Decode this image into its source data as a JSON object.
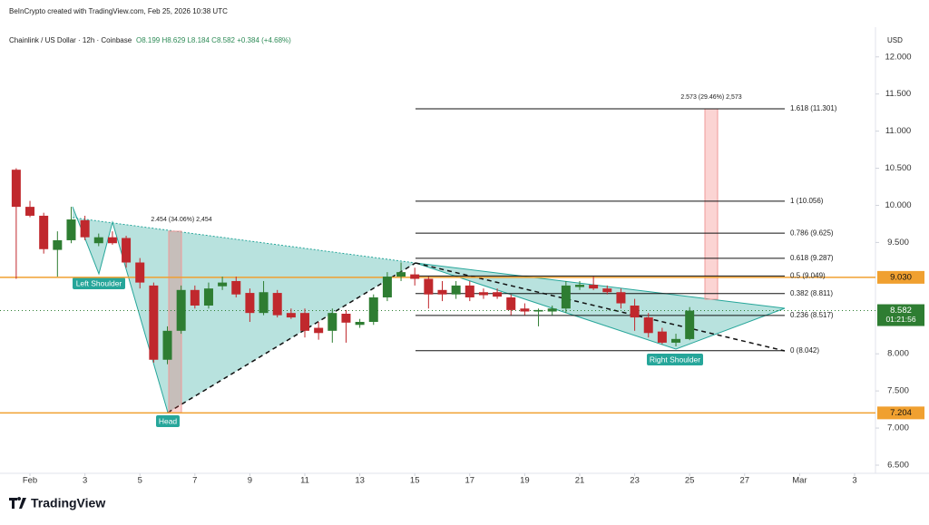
{
  "chart_data": {
    "type": "candlestick",
    "credit": "BeInCrypto created with TradingView.com, Feb 25, 2026 10:38 UTC",
    "title": "Chainlink / US Dollar · 12h · Coinbase",
    "ohlc": "O8.199 H8.629 L8.184 C8.582 +0.384 (+4.68%)",
    "currency": "USD",
    "brand": "TradingView",
    "up_color": "#2e7d32",
    "down_color": "#c0282d",
    "level_color": "#f0a030",
    "grid": false,
    "xlim": [
      -0.09,
      31.76
    ],
    "xticks": [
      {
        "value": 1,
        "label": "Feb"
      },
      3,
      5,
      7,
      9,
      11,
      13,
      15,
      17,
      19,
      21,
      23,
      25,
      27,
      {
        "value": 29,
        "label": "Mar"
      },
      {
        "value": 31,
        "label": "3"
      }
    ],
    "ylim": [
      6.39,
      12.4
    ],
    "yticks": [
      {
        "value": 6.5,
        "label": "6.500"
      },
      {
        "value": 7,
        "label": "7.000"
      },
      {
        "value": 7.5,
        "label": "7.500"
      },
      {
        "value": 8,
        "label": "8.000"
      },
      {
        "value": 9.5,
        "label": "9.500"
      },
      {
        "value": 10,
        "label": "10.000"
      },
      {
        "value": 10.5,
        "label": "10.500"
      },
      {
        "value": 11,
        "label": "11.000"
      },
      {
        "value": 11.5,
        "label": "11.500"
      },
      {
        "value": 12,
        "label": "12.000"
      }
    ],
    "candles": {
      "x": [
        0.5,
        1,
        1.5,
        2,
        2.5,
        3,
        3.5,
        4,
        4.5,
        5,
        5.5,
        6,
        6.5,
        7,
        7.5,
        8,
        8.5,
        9,
        9.5,
        10,
        10.5,
        11,
        11.5,
        12,
        12.5,
        13,
        13.5,
        14,
        14.5,
        15,
        15.5,
        16,
        16.5,
        17,
        17.5,
        18,
        18.5,
        19,
        19.5,
        20,
        20.5,
        21,
        21.5,
        22,
        22.5,
        23,
        23.5,
        24,
        24.5,
        25
      ],
      "open": [
        10.48,
        9.98,
        9.86,
        9.4,
        9.53,
        9.8,
        9.49,
        9.57,
        9.56,
        9.23,
        8.92,
        7.92,
        8.31,
        8.86,
        8.65,
        8.91,
        8.98,
        8.82,
        8.55,
        8.82,
        8.55,
        8.55,
        8.35,
        8.31,
        8.54,
        8.39,
        8.43,
        8.76,
        9.04,
        9.07,
        9.01,
        8.86,
        8.8,
        8.92,
        8.83,
        8.83,
        8.76,
        8.61,
        8.57,
        8.57,
        8.61,
        8.9,
        8.93,
        8.88,
        8.83,
        8.65,
        8.49,
        8.3,
        8.15,
        8.199
      ],
      "high": [
        10.5,
        10.06,
        9.9,
        9.65,
        9.98,
        9.86,
        9.62,
        9.65,
        9.59,
        9.29,
        8.96,
        8.37,
        8.92,
        8.92,
        8.96,
        9.04,
        9.04,
        8.88,
        8.98,
        8.86,
        8.61,
        8.61,
        8.43,
        8.61,
        8.59,
        8.47,
        8.8,
        9.1,
        9.23,
        9.16,
        9.04,
        8.98,
        8.98,
        8.98,
        8.88,
        8.88,
        8.8,
        8.68,
        8.61,
        8.65,
        8.98,
        8.98,
        9.04,
        8.92,
        8.88,
        8.74,
        8.55,
        8.35,
        8.27,
        8.629
      ],
      "low": [
        9.01,
        9.84,
        9.35,
        9.04,
        9.49,
        9.53,
        9.45,
        9.47,
        9.16,
        8.88,
        7.88,
        7.86,
        8.27,
        8.61,
        8.61,
        8.86,
        8.76,
        8.43,
        8.52,
        8.49,
        8.47,
        8.22,
        8.19,
        8.15,
        8.15,
        8.35,
        8.39,
        8.71,
        8.98,
        8.92,
        8.61,
        8.71,
        8.74,
        8.71,
        8.74,
        8.74,
        8.52,
        8.52,
        8.37,
        8.52,
        8.55,
        8.86,
        8.86,
        8.8,
        8.61,
        8.31,
        8.22,
        8.13,
        8.1,
        8.184
      ],
      "close": [
        9.98,
        9.86,
        9.41,
        9.53,
        9.81,
        9.57,
        9.57,
        9.49,
        9.23,
        8.96,
        7.92,
        8.31,
        8.86,
        8.65,
        8.88,
        8.96,
        8.8,
        8.55,
        8.83,
        8.52,
        8.49,
        8.31,
        8.28,
        8.55,
        8.42,
        8.43,
        8.76,
        9.04,
        9.1,
        9.01,
        8.8,
        8.8,
        8.92,
        8.76,
        8.79,
        8.77,
        8.59,
        8.57,
        8.59,
        8.61,
        8.92,
        8.93,
        8.88,
        8.83,
        8.68,
        8.49,
        8.28,
        8.15,
        8.2,
        8.582
      ]
    },
    "fib_levels": [
      {
        "label": "1.618 (11.301)",
        "value": 11.301
      },
      {
        "label": "1 (10.056)",
        "value": 10.056
      },
      {
        "label": "0.786 (9.625)",
        "value": 9.625
      },
      {
        "label": "0.618 (9.287)",
        "value": 9.287
      },
      {
        "label": "0.5 (9.049)",
        "value": 9.049
      },
      {
        "label": "0.382 (8.811)",
        "value": 8.811
      },
      {
        "label": "0.236 (8.517)",
        "value": 8.517
      },
      {
        "label": "0 (8.042)",
        "value": 8.042
      }
    ],
    "price_levels": [
      {
        "value": 9.03,
        "label": "9.030"
      },
      {
        "value": 7.204,
        "label": "7.204"
      }
    ],
    "last_price": {
      "value": 8.582,
      "label": "8.582",
      "countdown": "01:21:56"
    },
    "annotations": [
      "Left Shoulder",
      "Head",
      "Right Shoulder"
    ],
    "measures": [
      "2.454 (34.06%) 2,454",
      "2.573 (29.46%) 2,573"
    ]
  }
}
